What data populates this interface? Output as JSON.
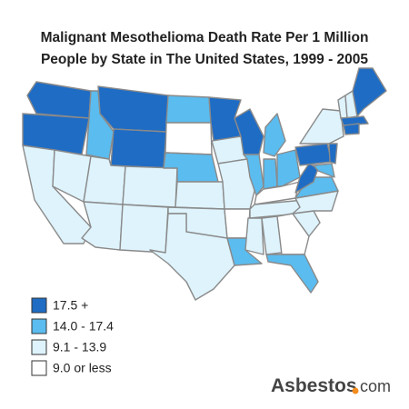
{
  "header": {
    "title_lines": [
      "Malignant Mesothelioma Death Rate Per 1 Million",
      "People by State in The United States, 1999 - 2005"
    ]
  },
  "legend": {
    "items": [
      {
        "label": "17.5 +",
        "color": "#1f6cc4"
      },
      {
        "label": "14.0 - 17.4",
        "color": "#5bbcef"
      },
      {
        "label": "9.1 - 13.9",
        "color": "#def3fc"
      },
      {
        "label": "9.0 or less",
        "color": "#ffffff"
      }
    ]
  },
  "logo": {
    "name": "Asbestos",
    "suffix": "com"
  }
}
